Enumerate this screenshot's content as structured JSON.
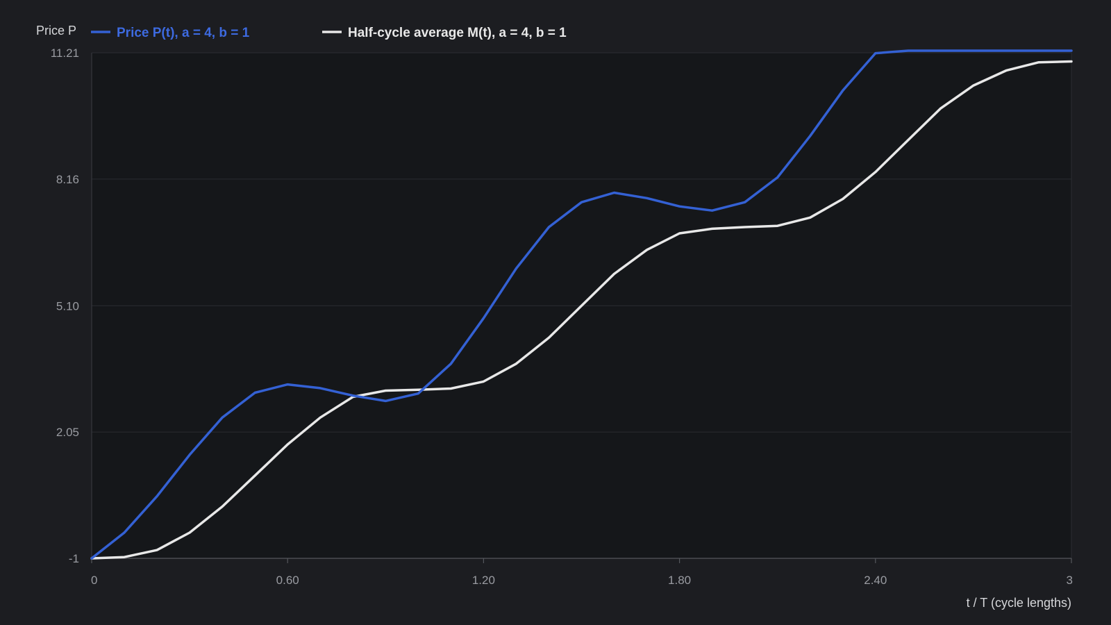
{
  "chart_data": {
    "type": "line",
    "title": "",
    "xlabel": "t / T (cycle lengths)",
    "ylabel": "Price P",
    "xlim": [
      0,
      3
    ],
    "ylim": [
      -1,
      11.21
    ],
    "x_ticks": [
      0,
      0.6,
      1.2,
      1.8,
      2.4,
      3
    ],
    "x_tick_labels": [
      "0",
      "0.60",
      "1.20",
      "1.80",
      "2.40",
      "3"
    ],
    "y_ticks": [
      -1,
      2.05,
      5.1,
      8.16,
      11.21
    ],
    "y_tick_labels": [
      "-1",
      "2.05",
      "5.10",
      "8.16",
      "11.21"
    ],
    "grid": true,
    "legend_position": "top-left",
    "x": [
      0,
      0.1,
      0.2,
      0.3,
      0.4,
      0.5,
      0.6,
      0.7,
      0.8,
      0.9,
      1.0,
      1.1,
      1.2,
      1.3,
      1.4,
      1.5,
      1.6,
      1.7,
      1.8,
      1.9,
      2.0,
      2.1,
      2.2,
      2.3,
      2.4,
      2.5,
      2.6,
      2.7,
      2.8,
      2.9,
      3.0
    ],
    "series": [
      {
        "name": "Price P(t), a = 4, b = 1",
        "color": "#3461d4",
        "values": [
          -1.0,
          -0.38,
          0.5,
          1.5,
          2.4,
          3.0,
          3.2,
          3.11,
          2.93,
          2.8,
          2.98,
          3.7,
          4.8,
          6.0,
          7.0,
          7.6,
          7.83,
          7.7,
          7.5,
          7.4,
          7.6,
          8.2,
          9.2,
          10.3,
          11.2,
          11.8,
          12.0,
          11.95,
          11.75,
          11.65,
          11.8
        ]
      },
      {
        "name": "Half-cycle average M(t), a = 4, b = 1",
        "color": "#e8e8e8",
        "values": [
          -1.0,
          -0.97,
          -0.8,
          -0.38,
          0.25,
          1.0,
          1.75,
          2.4,
          2.9,
          3.05,
          3.07,
          3.1,
          3.27,
          3.7,
          4.33,
          5.1,
          5.87,
          6.45,
          6.85,
          6.96,
          7.0,
          7.03,
          7.23,
          7.68,
          8.33,
          9.1,
          9.87,
          10.42,
          10.78,
          10.98,
          11.0
        ]
      }
    ]
  }
}
